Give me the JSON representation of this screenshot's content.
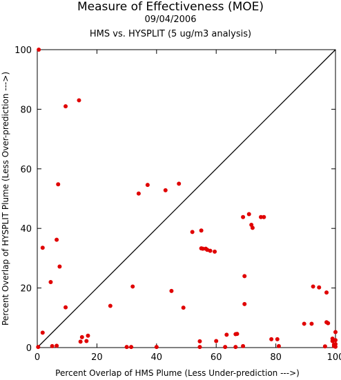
{
  "chart_data": {
    "type": "scatter",
    "title": "Measure of Effectiveness (MOE)",
    "subtitle": "09/04/2006",
    "subtitle2": "HMS vs. HYSPLIT  (5 ug/m3 analysis)",
    "xlabel": "Percent Overlap of HMS Plume (Less Under-prediction --->)",
    "ylabel": "Percent Overlap of HYSPLIT Plume (Less Over-prediction --->)",
    "xlim": [
      0,
      100
    ],
    "ylim": [
      0,
      100
    ],
    "xticks": [
      "0",
      "20",
      "40",
      "60",
      "80",
      "100"
    ],
    "yticks": [
      "0",
      "20",
      "40",
      "60",
      "80",
      "100"
    ],
    "grid": false,
    "reference_line": [
      [
        0,
        0
      ],
      [
        100,
        100
      ]
    ],
    "marker_color": "#e00000",
    "points": [
      [
        0.5,
        100
      ],
      [
        0.3,
        0.2
      ],
      [
        1.8,
        33.5
      ],
      [
        1.8,
        5
      ],
      [
        4.5,
        22
      ],
      [
        5,
        0.5
      ],
      [
        6.5,
        0.6
      ],
      [
        6.5,
        36.2
      ],
      [
        7,
        54.8
      ],
      [
        7.5,
        27.2
      ],
      [
        9.5,
        81
      ],
      [
        9.5,
        13.5
      ],
      [
        14,
        83
      ],
      [
        14.5,
        2
      ],
      [
        15,
        3.5
      ],
      [
        16.5,
        2.2
      ],
      [
        17,
        4
      ],
      [
        24.5,
        14
      ],
      [
        30,
        0.2
      ],
      [
        31.5,
        0.2
      ],
      [
        32,
        20.5
      ],
      [
        34,
        51.7
      ],
      [
        37,
        54.6
      ],
      [
        40,
        0.2
      ],
      [
        43,
        52.8
      ],
      [
        45,
        19
      ],
      [
        47.5,
        55
      ],
      [
        49,
        13.4
      ],
      [
        52,
        38.8
      ],
      [
        54.5,
        0.2
      ],
      [
        54.5,
        2.1
      ],
      [
        55,
        33.3
      ],
      [
        55,
        39.3
      ],
      [
        55.5,
        33.2
      ],
      [
        56.5,
        33.2
      ],
      [
        57,
        32.8
      ],
      [
        58,
        32.5
      ],
      [
        59.5,
        32.2
      ],
      [
        60,
        2.2
      ],
      [
        63,
        0.2
      ],
      [
        63.5,
        4.3
      ],
      [
        66.5,
        0.2
      ],
      [
        66.5,
        4.5
      ],
      [
        67,
        4.6
      ],
      [
        69,
        43.8
      ],
      [
        69,
        0.5
      ],
      [
        69.5,
        24
      ],
      [
        69.5,
        14.6
      ],
      [
        71,
        44.8
      ],
      [
        71.8,
        41.2
      ],
      [
        72.2,
        40.2
      ],
      [
        75,
        43.8
      ],
      [
        76,
        43.8
      ],
      [
        78.5,
        2.8
      ],
      [
        80.5,
        2.8
      ],
      [
        81,
        0.5
      ],
      [
        89.5,
        8
      ],
      [
        92,
        8
      ],
      [
        92.5,
        20.5
      ],
      [
        94.5,
        20.2
      ],
      [
        96.5,
        0.4
      ],
      [
        97,
        8.5
      ],
      [
        97.5,
        8.2
      ],
      [
        97,
        18.5
      ],
      [
        99,
        3
      ],
      [
        99,
        2.2
      ],
      [
        99.5,
        1
      ],
      [
        99.5,
        0.5
      ],
      [
        100,
        0.3
      ],
      [
        100,
        5.2
      ],
      [
        100,
        2.5
      ],
      [
        100,
        1.2
      ]
    ]
  }
}
